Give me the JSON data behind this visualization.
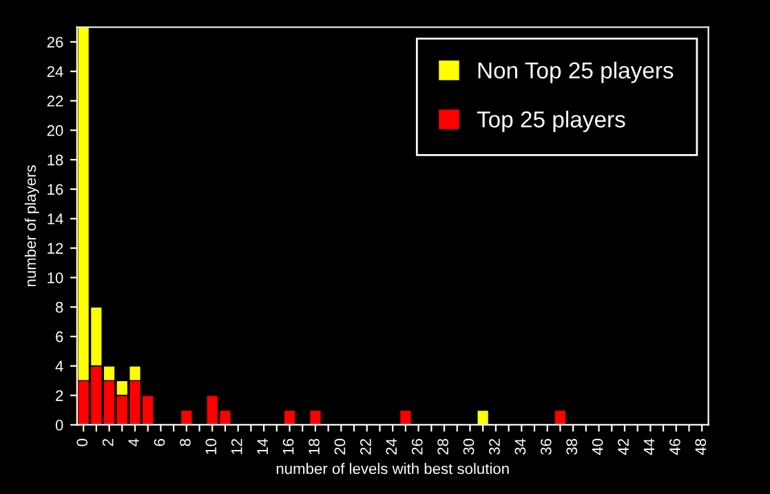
{
  "chart_data": {
    "type": "bar",
    "stacked": true,
    "xlabel": "number of levels with best solution",
    "ylabel": "number of players",
    "categories": [
      "0",
      null,
      "2",
      null,
      "4",
      null,
      "6",
      null,
      "8",
      null,
      "10",
      null,
      "12",
      null,
      "14",
      null,
      "16",
      null,
      "18",
      null,
      "20",
      null,
      "22",
      null,
      "24",
      null,
      "26",
      null,
      "28",
      null,
      "30",
      null,
      "32",
      null,
      "34",
      null,
      "36",
      null,
      "38",
      null,
      "40",
      null,
      "42",
      null,
      "44",
      null,
      "46",
      null,
      "48"
    ],
    "series": [
      {
        "name": "Top 25 players",
        "color": "#ff0000",
        "values": [
          3,
          4,
          3,
          2,
          3,
          2,
          0,
          0,
          1,
          0,
          2,
          1,
          0,
          0,
          0,
          0,
          1,
          0,
          1,
          0,
          0,
          0,
          0,
          0,
          0,
          1,
          0,
          0,
          0,
          0,
          0,
          0,
          0,
          0,
          0,
          0,
          0,
          1,
          0,
          0,
          0,
          0,
          0,
          0,
          0,
          0,
          0,
          0,
          0
        ]
      },
      {
        "name": "Non Top 25 players",
        "color": "#ffff00",
        "values": [
          24,
          4,
          1,
          1,
          1,
          0,
          0,
          0,
          0,
          0,
          0,
          0,
          0,
          0,
          0,
          0,
          0,
          0,
          0,
          0,
          0,
          0,
          0,
          0,
          0,
          0,
          0,
          0,
          0,
          0,
          0,
          1,
          0,
          0,
          0,
          0,
          0,
          0,
          0,
          0,
          0,
          0,
          0,
          0,
          0,
          0,
          0,
          0,
          0
        ]
      }
    ],
    "ylim": [
      0,
      27
    ],
    "yticks": [
      0,
      2,
      4,
      6,
      8,
      10,
      12,
      14,
      16,
      18,
      20,
      22,
      24,
      26
    ],
    "grid": false,
    "legend": "top right"
  }
}
